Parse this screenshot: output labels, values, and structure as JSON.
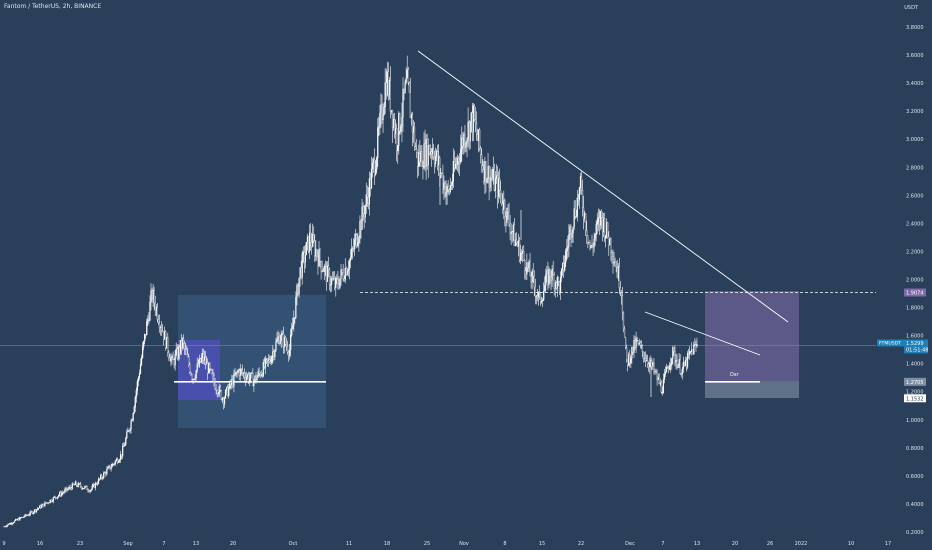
{
  "title": "Fantom / TetherUS, 2h, BINANCE",
  "currency": "USDT",
  "colors": {
    "background": "#2a3f5a",
    "candles": "#ffffff",
    "text": "#dfe6ee",
    "box": "#3a6389",
    "box2": "#7e6aa8",
    "support": "#ffffff"
  },
  "chart_data": {
    "type": "candlestick",
    "ylim": [
      0.2,
      3.9
    ],
    "y_ticks": [
      "3.8000",
      "3.6000",
      "3.4000",
      "3.2000",
      "3.0000",
      "2.8000",
      "2.6000",
      "2.4000",
      "2.2000",
      "2.0000",
      "1.8000",
      "1.6000",
      "1.4000",
      "1.2000",
      "1.0000",
      "0.8000",
      "0.6000",
      "0.4000",
      "0.2000"
    ],
    "x_ticks": [
      "9",
      "16",
      "23",
      "Sep",
      "7",
      "13",
      "20",
      "Oct",
      "11",
      "18",
      "25",
      "Nov",
      "8",
      "15",
      "22",
      "Dec",
      "7",
      "13",
      "20",
      "26",
      "2022",
      "10",
      "17"
    ],
    "price_path": [
      [
        "2021-08-09",
        0.24
      ],
      [
        "2021-08-14",
        0.33
      ],
      [
        "2021-08-20",
        0.47
      ],
      [
        "2021-08-23",
        0.54
      ],
      [
        "2021-08-26",
        0.5
      ],
      [
        "2021-08-29",
        0.63
      ],
      [
        "2021-09-01",
        0.75
      ],
      [
        "2021-09-03",
        1.0
      ],
      [
        "2021-09-05",
        1.45
      ],
      [
        "2021-09-07",
        1.9
      ],
      [
        "2021-09-09",
        1.65
      ],
      [
        "2021-09-11",
        1.4
      ],
      [
        "2021-09-13",
        1.55
      ],
      [
        "2021-09-15",
        1.3
      ],
      [
        "2021-09-17",
        1.45
      ],
      [
        "2021-09-19",
        1.28
      ],
      [
        "2021-09-21",
        1.15
      ],
      [
        "2021-09-24",
        1.35
      ],
      [
        "2021-09-27",
        1.28
      ],
      [
        "2021-09-30",
        1.42
      ],
      [
        "2021-10-02",
        1.6
      ],
      [
        "2021-10-04",
        1.5
      ],
      [
        "2021-10-06",
        2.05
      ],
      [
        "2021-10-08",
        2.3
      ],
      [
        "2021-10-11",
        2.05
      ],
      [
        "2021-10-13",
        1.95
      ],
      [
        "2021-10-16",
        2.15
      ],
      [
        "2021-10-19",
        2.55
      ],
      [
        "2021-10-21",
        2.9
      ],
      [
        "2021-10-23",
        3.45
      ],
      [
        "2021-10-25",
        3.0
      ],
      [
        "2021-10-27",
        3.4
      ],
      [
        "2021-10-29",
        2.85
      ],
      [
        "2021-11-01",
        2.95
      ],
      [
        "2021-11-04",
        2.6
      ],
      [
        "2021-11-07",
        3.0
      ],
      [
        "2021-11-09",
        3.15
      ],
      [
        "2021-11-11",
        2.8
      ],
      [
        "2021-11-14",
        2.65
      ],
      [
        "2021-11-17",
        2.3
      ],
      [
        "2021-11-20",
        2.05
      ],
      [
        "2021-11-22",
        1.85
      ],
      [
        "2021-11-24",
        2.05
      ],
      [
        "2021-11-26",
        1.95
      ],
      [
        "2021-11-28",
        2.35
      ],
      [
        "2021-11-30",
        2.65
      ],
      [
        "2021-12-02",
        2.2
      ],
      [
        "2021-12-04",
        2.45
      ],
      [
        "2021-12-06",
        2.25
      ],
      [
        "2021-12-08",
        1.95
      ],
      [
        "2021-12-09",
        1.4
      ],
      [
        "2021-12-11",
        1.55
      ],
      [
        "2021-12-14",
        1.38
      ],
      [
        "2021-12-16",
        1.22
      ],
      [
        "2021-12-18",
        1.48
      ],
      [
        "2021-12-20",
        1.35
      ],
      [
        "2021-12-22",
        1.5
      ],
      [
        "2021-12-23",
        1.53
      ]
    ],
    "annotations": {
      "dashed_level": 1.9074,
      "horizontal_line": 1.2705,
      "lower_level": 1.1532,
      "current_price": 1.5299,
      "countdown": "01:51:48",
      "small_label": "Dsr"
    },
    "price_labels": [
      {
        "text": "1.9074",
        "value": 1.9074
      },
      {
        "text": "1.2705",
        "value": 1.2705
      },
      {
        "text": "1.1532",
        "value": 1.1532
      }
    ],
    "symbol_label": "FTMUSDT",
    "grid": false
  }
}
